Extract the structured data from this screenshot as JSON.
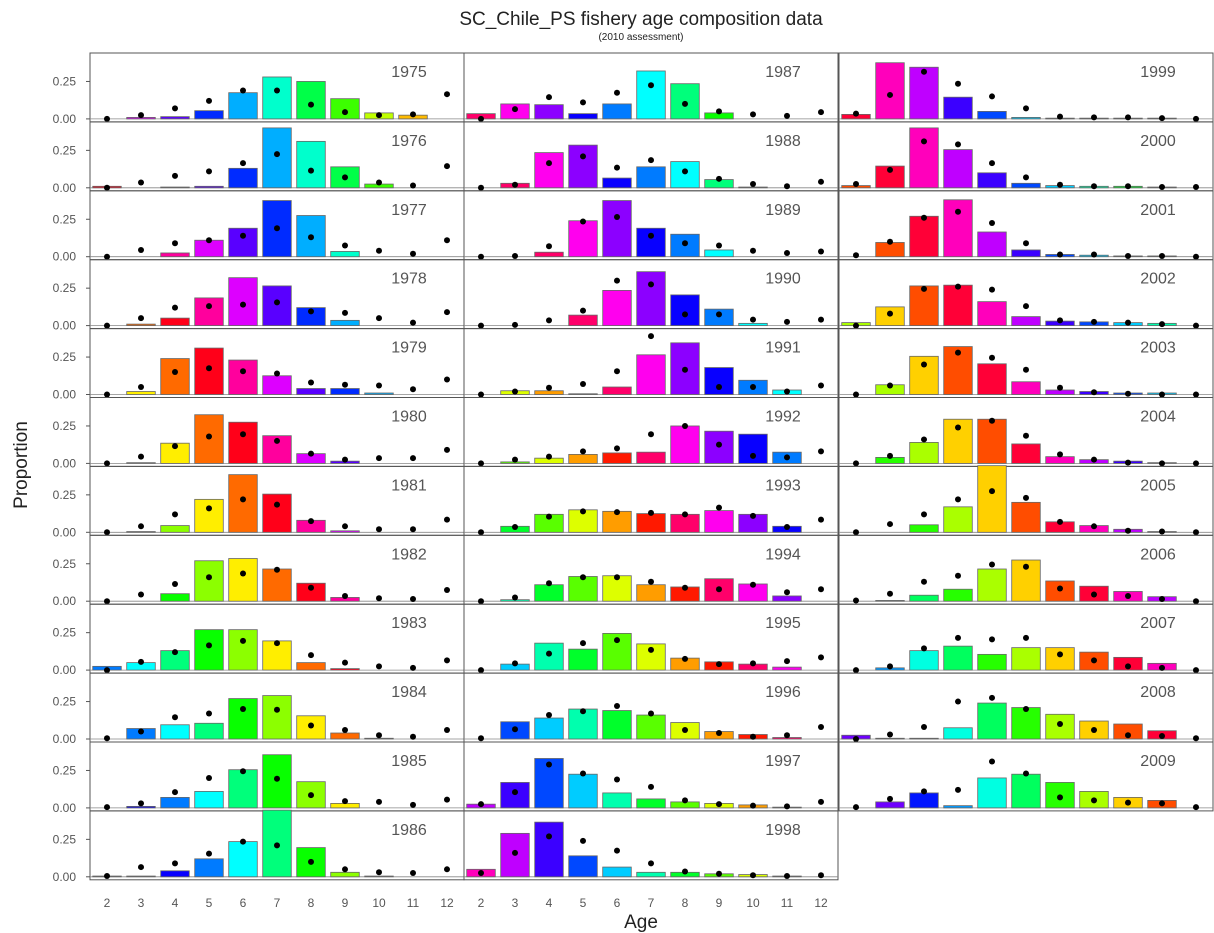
{
  "chart_data": {
    "type": "bar",
    "title": "SC_Chile_PS fishery age composition data",
    "subtitle": "(2010 assessment)",
    "xlabel": "Age",
    "ylabel": "Proportion",
    "ages": [
      2,
      3,
      4,
      5,
      6,
      7,
      8,
      9,
      10,
      11,
      12
    ],
    "ylim": [
      0,
      0.42
    ],
    "yticks": [
      "0.00",
      "0.25"
    ],
    "marker": "expected (dots)",
    "panels": [
      {
        "year": "1975",
        "obs": [
          0,
          0.01,
          0.015,
          0.055,
          0.175,
          0.28,
          0.25,
          0.135,
          0.04,
          0.025,
          0
        ],
        "exp": [
          0,
          0.025,
          0.07,
          0.12,
          0.19,
          0.19,
          0.095,
          0.045,
          0.025,
          0.03,
          0.165
        ]
      },
      {
        "year": "1976",
        "obs": [
          0.01,
          0,
          0.005,
          0.01,
          0.13,
          0.4,
          0.31,
          0.14,
          0.025,
          0,
          0
        ],
        "exp": [
          0,
          0.035,
          0.08,
          0.11,
          0.165,
          0.225,
          0.115,
          0.07,
          0.035,
          0.015,
          0.145
        ]
      },
      {
        "year": "1977",
        "obs": [
          0,
          0,
          0.025,
          0.11,
          0.19,
          0.375,
          0.275,
          0.035,
          0,
          0,
          0
        ],
        "exp": [
          0,
          0.045,
          0.09,
          0.11,
          0.14,
          0.19,
          0.13,
          0.075,
          0.04,
          0.02,
          0.11
        ]
      },
      {
        "year": "1978",
        "obs": [
          0,
          0.01,
          0.05,
          0.185,
          0.32,
          0.265,
          0.12,
          0.035,
          0,
          0,
          0
        ],
        "exp": [
          0,
          0.05,
          0.12,
          0.13,
          0.14,
          0.155,
          0.095,
          0.085,
          0.05,
          0.02,
          0.09
        ]
      },
      {
        "year": "1979",
        "obs": [
          0,
          0.02,
          0.24,
          0.31,
          0.23,
          0.125,
          0.04,
          0.04,
          0.01,
          0,
          0
        ],
        "exp": [
          0,
          0.05,
          0.15,
          0.175,
          0.155,
          0.14,
          0.08,
          0.065,
          0.06,
          0.035,
          0.1
        ]
      },
      {
        "year": "1980",
        "obs": [
          0,
          0.005,
          0.135,
          0.325,
          0.275,
          0.185,
          0.065,
          0.015,
          0,
          0,
          0
        ],
        "exp": [
          0,
          0.045,
          0.115,
          0.18,
          0.195,
          0.15,
          0.065,
          0.025,
          0.035,
          0.035,
          0.09
        ]
      },
      {
        "year": "1981",
        "obs": [
          0,
          0.005,
          0.045,
          0.22,
          0.385,
          0.255,
          0.08,
          0.01,
          0,
          0,
          0
        ],
        "exp": [
          0,
          0.04,
          0.12,
          0.16,
          0.22,
          0.185,
          0.075,
          0.04,
          0.02,
          0.02,
          0.085
        ]
      },
      {
        "year": "1982",
        "obs": [
          0,
          0,
          0.05,
          0.27,
          0.285,
          0.215,
          0.12,
          0.025,
          0,
          0,
          0
        ],
        "exp": [
          0,
          0.045,
          0.115,
          0.16,
          0.185,
          0.21,
          0.09,
          0.035,
          0.02,
          0.015,
          0.075
        ]
      },
      {
        "year": "1983",
        "obs": [
          0.025,
          0.05,
          0.13,
          0.27,
          0.27,
          0.195,
          0.05,
          0.01,
          0,
          0,
          0
        ],
        "exp": [
          0,
          0.055,
          0.12,
          0.165,
          0.195,
          0.18,
          0.1,
          0.05,
          0.025,
          0.015,
          0.065
        ]
      },
      {
        "year": "1984",
        "obs": [
          0,
          0.07,
          0.095,
          0.105,
          0.27,
          0.29,
          0.155,
          0.04,
          0.005,
          0,
          0
        ],
        "exp": [
          0.005,
          0.05,
          0.145,
          0.17,
          0.2,
          0.195,
          0.09,
          0.06,
          0.025,
          0.015,
          0.06
        ]
      },
      {
        "year": "1985",
        "obs": [
          0,
          0.01,
          0.07,
          0.11,
          0.255,
          0.355,
          0.175,
          0.03,
          0,
          0,
          0
        ],
        "exp": [
          0.005,
          0.03,
          0.105,
          0.2,
          0.245,
          0.195,
          0.085,
          0.045,
          0.04,
          0.02,
          0.055
        ]
      },
      {
        "year": "1986",
        "obs": [
          0.005,
          0.005,
          0.04,
          0.12,
          0.235,
          0.445,
          0.195,
          0.03,
          0.005,
          0,
          0
        ],
        "exp": [
          0.005,
          0.065,
          0.09,
          0.155,
          0.235,
          0.21,
          0.1,
          0.05,
          0.03,
          0.025,
          0.05
        ]
      },
      {
        "year": "1987",
        "obs": [
          0.035,
          0.1,
          0.095,
          0.035,
          0.1,
          0.32,
          0.235,
          0.04,
          0,
          0,
          0
        ],
        "exp": [
          0,
          0.065,
          0.145,
          0.11,
          0.175,
          0.225,
          0.1,
          0.05,
          0.03,
          0.02,
          0.045
        ]
      },
      {
        "year": "1988",
        "obs": [
          0,
          0.03,
          0.235,
          0.285,
          0.065,
          0.14,
          0.175,
          0.055,
          0.005,
          0,
          0
        ],
        "exp": [
          0,
          0.02,
          0.165,
          0.21,
          0.135,
          0.185,
          0.11,
          0.06,
          0.025,
          0.01,
          0.04
        ]
      },
      {
        "year": "1989",
        "obs": [
          0,
          0,
          0.03,
          0.24,
          0.375,
          0.19,
          0.15,
          0.045,
          0,
          0,
          0
        ],
        "exp": [
          0,
          0.005,
          0.07,
          0.235,
          0.265,
          0.14,
          0.09,
          0.075,
          0.04,
          0.025,
          0.035
        ]
      },
      {
        "year": "1990",
        "obs": [
          0,
          0,
          0,
          0.07,
          0.235,
          0.36,
          0.205,
          0.11,
          0.015,
          0,
          0
        ],
        "exp": [
          0,
          0.005,
          0.035,
          0.1,
          0.3,
          0.275,
          0.075,
          0.075,
          0.04,
          0.025,
          0.04
        ]
      },
      {
        "year": "1991",
        "obs": [
          0,
          0.025,
          0.025,
          0.005,
          0.05,
          0.265,
          0.345,
          0.18,
          0.095,
          0.03,
          0
        ],
        "exp": [
          0,
          0.02,
          0.045,
          0.07,
          0.155,
          0.39,
          0.165,
          0.05,
          0.05,
          0.02,
          0.06
        ]
      },
      {
        "year": "1992",
        "obs": [
          0,
          0.01,
          0.035,
          0.06,
          0.07,
          0.075,
          0.25,
          0.215,
          0.195,
          0.075,
          0
        ],
        "exp": [
          0,
          0.025,
          0.045,
          0.08,
          0.1,
          0.195,
          0.25,
          0.125,
          0.05,
          0.04,
          0.08
        ]
      },
      {
        "year": "1993",
        "obs": [
          0,
          0.04,
          0.12,
          0.15,
          0.14,
          0.125,
          0.12,
          0.145,
          0.12,
          0.04,
          0
        ],
        "exp": [
          0,
          0.035,
          0.105,
          0.14,
          0.135,
          0.13,
          0.12,
          0.165,
          0.11,
          0.035,
          0.085
        ]
      },
      {
        "year": "1994",
        "obs": [
          0,
          0.01,
          0.11,
          0.165,
          0.17,
          0.11,
          0.095,
          0.15,
          0.115,
          0.035,
          0
        ],
        "exp": [
          0,
          0.025,
          0.12,
          0.16,
          0.16,
          0.13,
          0.09,
          0.08,
          0.11,
          0.06,
          0.08
        ]
      },
      {
        "year": "1995",
        "obs": [
          0,
          0.04,
          0.18,
          0.14,
          0.245,
          0.175,
          0.08,
          0.055,
          0.04,
          0.02,
          0
        ],
        "exp": [
          0,
          0.045,
          0.11,
          0.18,
          0.2,
          0.135,
          0.075,
          0.04,
          0.045,
          0.06,
          0.085
        ]
      },
      {
        "year": "1996",
        "obs": [
          0,
          0.115,
          0.14,
          0.2,
          0.19,
          0.16,
          0.11,
          0.05,
          0.03,
          0.01,
          0
        ],
        "exp": [
          0.005,
          0.065,
          0.16,
          0.185,
          0.22,
          0.17,
          0.06,
          0.04,
          0.015,
          0.025,
          0.08
        ]
      },
      {
        "year": "1997",
        "obs": [
          0.025,
          0.17,
          0.33,
          0.225,
          0.1,
          0.06,
          0.04,
          0.03,
          0.02,
          0.005,
          0
        ],
        "exp": [
          0.025,
          0.105,
          0.29,
          0.23,
          0.19,
          0.14,
          0.05,
          0.025,
          0.015,
          0.01,
          0.04
        ]
      },
      {
        "year": "1998",
        "obs": [
          0.05,
          0.29,
          0.365,
          0.14,
          0.065,
          0.03,
          0.03,
          0.02,
          0.015,
          0.005,
          0
        ],
        "exp": [
          0.025,
          0.16,
          0.27,
          0.24,
          0.175,
          0.09,
          0.035,
          0.02,
          0.01,
          0.005,
          0.01
        ]
      },
      {
        "year": "1999",
        "obs": [
          0.03,
          0.375,
          0.345,
          0.145,
          0.05,
          0.01,
          0.005,
          0.005,
          0.005,
          0.005,
          0
        ],
        "exp": [
          0.035,
          0.16,
          0.315,
          0.235,
          0.15,
          0.07,
          0.015,
          0.01,
          0.01,
          0.005,
          0
        ]
      },
      {
        "year": "2000",
        "obs": [
          0.015,
          0.145,
          0.4,
          0.255,
          0.1,
          0.03,
          0.015,
          0.01,
          0.01,
          0.005,
          0
        ],
        "exp": [
          0.025,
          0.12,
          0.31,
          0.29,
          0.165,
          0.07,
          0.02,
          0.01,
          0.01,
          0.005,
          0.005
        ]
      },
      {
        "year": "2001",
        "obs": [
          0,
          0.095,
          0.27,
          0.38,
          0.165,
          0.045,
          0.015,
          0.01,
          0.005,
          0.005,
          0
        ],
        "exp": [
          0.01,
          0.1,
          0.26,
          0.3,
          0.225,
          0.09,
          0.015,
          0.015,
          0.005,
          0.005,
          0
        ]
      },
      {
        "year": "2002",
        "obs": [
          0.02,
          0.125,
          0.265,
          0.27,
          0.16,
          0.06,
          0.03,
          0.025,
          0.02,
          0.015,
          0
        ],
        "exp": [
          0,
          0.08,
          0.245,
          0.26,
          0.24,
          0.13,
          0.035,
          0.025,
          0.02,
          0.01,
          0
        ]
      },
      {
        "year": "2003",
        "obs": [
          0,
          0.065,
          0.255,
          0.32,
          0.205,
          0.085,
          0.03,
          0.02,
          0.01,
          0.01,
          0
        ],
        "exp": [
          0,
          0.06,
          0.2,
          0.28,
          0.245,
          0.165,
          0.045,
          0.015,
          0.005,
          0,
          0
        ]
      },
      {
        "year": "2004",
        "obs": [
          0,
          0.04,
          0.14,
          0.295,
          0.295,
          0.13,
          0.045,
          0.025,
          0.015,
          0.005,
          0
        ],
        "exp": [
          0,
          0.05,
          0.16,
          0.24,
          0.285,
          0.185,
          0.06,
          0.025,
          0.005,
          0,
          0
        ]
      },
      {
        "year": "2005",
        "obs": [
          0,
          0,
          0.05,
          0.17,
          0.445,
          0.2,
          0.07,
          0.045,
          0.02,
          0.005,
          0
        ],
        "exp": [
          0,
          0.055,
          0.12,
          0.22,
          0.275,
          0.23,
          0.07,
          0.04,
          0.01,
          0.005,
          0
        ]
      },
      {
        "year": "2006",
        "obs": [
          0,
          0.005,
          0.04,
          0.08,
          0.215,
          0.275,
          0.135,
          0.1,
          0.065,
          0.03,
          0
        ],
        "exp": [
          0.005,
          0.05,
          0.13,
          0.17,
          0.245,
          0.23,
          0.085,
          0.045,
          0.035,
          0.015,
          0
        ]
      },
      {
        "year": "2007",
        "obs": [
          0,
          0.015,
          0.13,
          0.16,
          0.105,
          0.15,
          0.15,
          0.12,
          0.085,
          0.045,
          0
        ],
        "exp": [
          0,
          0.025,
          0.145,
          0.215,
          0.205,
          0.215,
          0.105,
          0.065,
          0.025,
          0.015,
          0
        ]
      },
      {
        "year": "2008",
        "obs": [
          0.025,
          0.005,
          0.005,
          0.075,
          0.24,
          0.21,
          0.165,
          0.12,
          0.1,
          0.055,
          0
        ],
        "exp": [
          0,
          0.03,
          0.08,
          0.25,
          0.275,
          0.2,
          0.1,
          0.06,
          0.025,
          0.02,
          0.005
        ]
      },
      {
        "year": "2009",
        "obs": [
          0,
          0.04,
          0.1,
          0.015,
          0.2,
          0.225,
          0.17,
          0.11,
          0.07,
          0.05,
          0
        ],
        "exp": [
          0.005,
          0.06,
          0.11,
          0.12,
          0.31,
          0.23,
          0.07,
          0.05,
          0.035,
          0.03,
          0.005
        ]
      }
    ]
  }
}
